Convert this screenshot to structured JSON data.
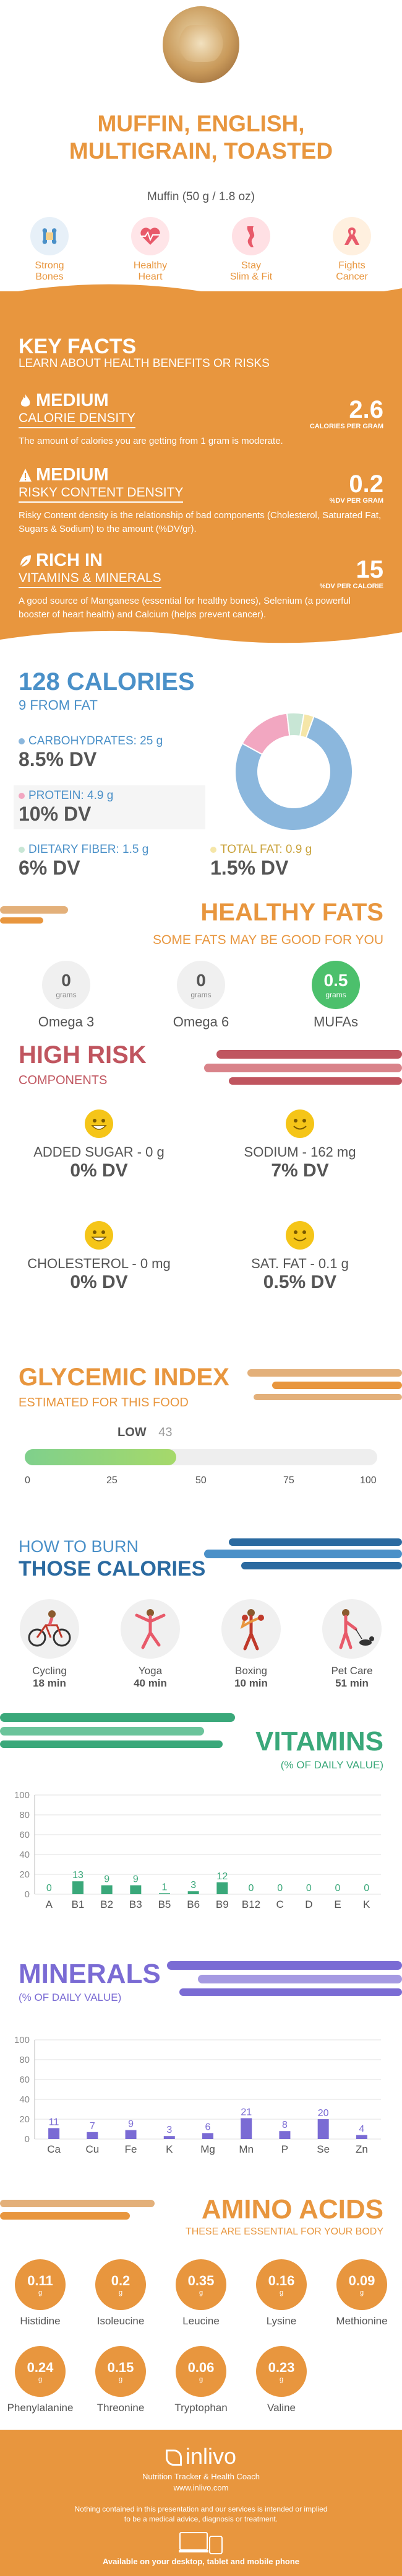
{
  "header": {
    "title_line1": "MUFFIN, ENGLISH,",
    "title_line2": "MULTIGRAIN, TOASTED",
    "serving": "Muffin (50 g / 1.8 oz)"
  },
  "benefits": [
    {
      "label1": "Strong",
      "label2": "Bones",
      "icon": "bone-icon",
      "color": "#4a90c8"
    },
    {
      "label1": "Healthy",
      "label2": "Heart",
      "icon": "heart-icon",
      "color": "#3aa87a"
    },
    {
      "label1": "Stay",
      "label2": "Slim & Fit",
      "icon": "body-icon",
      "color": "#e66a7a"
    },
    {
      "label1": "Fights",
      "label2": "Cancer",
      "icon": "ribbon-icon",
      "color": "#e8963e"
    }
  ],
  "key_facts": {
    "heading": "KEY FACTS",
    "subheading": "LEARN ABOUT HEALTH BENEFITS OR RISKS",
    "items": [
      {
        "level": "MEDIUM",
        "name": "CALORIE DENSITY",
        "value": "2.6",
        "unit": "CALORIES PER GRAM",
        "desc": "The amount of calories you are getting from 1 gram is moderate."
      },
      {
        "level": "MEDIUM",
        "name": "RISKY CONTENT DENSITY",
        "value": "0.2",
        "unit": "%DV PER GRAM",
        "desc": "Risky Content density is the relationship of bad components (Cholesterol, Saturated Fat, Sugars & Sodium) to the amount (%DV/gr)."
      },
      {
        "level": "RICH IN",
        "name": "VITAMINS & MINERALS",
        "value": "15",
        "unit": "%DV PER CALORIE",
        "desc": "A good source of Manganese (essential for healthy bones), Selenium (a powerful booster of heart health) and Calcium (helps prevent cancer)."
      }
    ]
  },
  "calories": {
    "heading": "128 CALORIES",
    "sub": "9 FROM FAT",
    "carbs_label": "CARBOHYDRATES: 25 g",
    "carbs_dv": "8.5% DV",
    "protein_label": "PROTEIN: 4.9 g",
    "protein_dv": "10% DV",
    "fiber_label": "DIETARY FIBER: 1.5 g",
    "fiber_dv": "6% DV",
    "fat_label": "TOTAL FAT: 0.9 g",
    "fat_dv": "1.5% DV",
    "colors": {
      "carbs": "#8bb7dd",
      "protein": "#f2a7c1",
      "fiber": "#c8e6d5",
      "fat": "#f5e6a8"
    }
  },
  "chart_data": [
    {
      "type": "pie",
      "title": "",
      "categories": [
        "Carbohydrates",
        "Protein",
        "Dietary Fiber",
        "Total Fat"
      ],
      "values": [
        25,
        4.9,
        1.5,
        0.9
      ]
    },
    {
      "type": "bar",
      "title": "VITAMINS",
      "subtitle": "(% OF DAILY VALUE)",
      "categories": [
        "A",
        "B1",
        "B2",
        "B3",
        "B5",
        "B6",
        "B9",
        "B12",
        "C",
        "D",
        "E",
        "K"
      ],
      "values": [
        0,
        13,
        9,
        9,
        1,
        3,
        12,
        0,
        0,
        0,
        0,
        0
      ],
      "ylim": [
        0,
        100
      ],
      "yticks": [
        0,
        20,
        40,
        60,
        80,
        100
      ]
    },
    {
      "type": "bar",
      "title": "MINERALS",
      "subtitle": "(% OF DAILY VALUE)",
      "categories": [
        "Ca",
        "Cu",
        "Fe",
        "K",
        "Mg",
        "Mn",
        "P",
        "Se",
        "Zn"
      ],
      "values": [
        11,
        7,
        9,
        3,
        6,
        21,
        8,
        20,
        4
      ],
      "ylim": [
        0,
        100
      ],
      "yticks": [
        0,
        20,
        40,
        60,
        80,
        100
      ]
    }
  ],
  "fats": {
    "heading": "HEALTHY FATS",
    "sub": "SOME FATS MAY BE GOOD FOR YOU",
    "unit": "grams",
    "items": [
      {
        "value": "0",
        "label": "Omega 3"
      },
      {
        "value": "0",
        "label": "Omega 6"
      },
      {
        "value": "0.5",
        "label": "MUFAs"
      }
    ]
  },
  "risk": {
    "heading": "HIGH RISK",
    "sub": "COMPONENTS",
    "items": [
      {
        "label": "ADDED SUGAR - 0 g",
        "value": "0% DV"
      },
      {
        "label": "SODIUM - 162 mg",
        "value": "7% DV"
      },
      {
        "label": "CHOLESTEROL - 0 mg",
        "value": "0% DV"
      },
      {
        "label": "SAT. FAT - 0.1 g",
        "value": "0.5% DV"
      }
    ]
  },
  "glycemic": {
    "heading": "GLYCEMIC INDEX",
    "sub": "ESTIMATED FOR THIS FOOD",
    "level": "LOW",
    "value": 43,
    "value_text": "43",
    "ticks": [
      "0",
      "25",
      "50",
      "75",
      "100"
    ]
  },
  "burn": {
    "heading1": "HOW TO BURN",
    "heading2": "THOSE CALORIES",
    "items": [
      {
        "name": "Cycling",
        "time": "18 min",
        "icon": "cycling-icon"
      },
      {
        "name": "Yoga",
        "time": "40 min",
        "icon": "yoga-icon"
      },
      {
        "name": "Boxing",
        "time": "10 min",
        "icon": "boxing-icon"
      },
      {
        "name": "Pet Care",
        "time": "51 min",
        "icon": "dog-walking-icon"
      }
    ]
  },
  "amino": {
    "heading": "AMINO ACIDS",
    "sub": "THESE ARE ESSENTIAL FOR YOUR BODY",
    "unit": "g",
    "items": [
      {
        "value": "0.11",
        "label": "Histidine"
      },
      {
        "value": "0.2",
        "label": "Isoleucine"
      },
      {
        "value": "0.35",
        "label": "Leucine"
      },
      {
        "value": "0.16",
        "label": "Lysine"
      },
      {
        "value": "0.09",
        "label": "Methionine"
      },
      {
        "value": "0.24",
        "label": "Phenylalanine"
      },
      {
        "value": "0.15",
        "label": "Threonine"
      },
      {
        "value": "0.06",
        "label": "Tryptophan"
      },
      {
        "value": "0.23",
        "label": "Valine"
      }
    ]
  },
  "footer": {
    "logo": "inlivo",
    "tagline": "Nutrition Tracker & Health Coach",
    "url": "www.inlivo.com",
    "disclaimer": "Nothing contained in this presentation and our services is intended or implied to be a medical advice, diagnosis or treatment.",
    "available": "Available on your desktop, tablet and mobile phone"
  }
}
